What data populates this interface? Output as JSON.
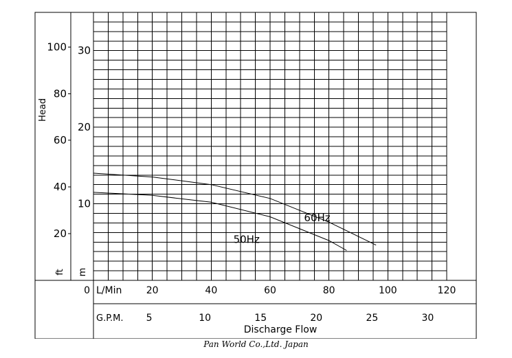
{
  "chart_data": {
    "type": "line",
    "title": "",
    "x_primary": {
      "unit": "L/Min",
      "ticks": [
        20,
        40,
        60,
        80,
        100,
        120
      ],
      "origin_label": "0",
      "range": [
        0,
        120
      ]
    },
    "x_secondary": {
      "unit": "G.P.M.",
      "ticks": [
        5,
        10,
        15,
        20,
        25,
        30
      ]
    },
    "xlabel": "Discharge Flow",
    "y_primary": {
      "label": "Head",
      "unit": "ft",
      "ticks": [
        20,
        40,
        60,
        80,
        100
      ]
    },
    "y_secondary": {
      "unit": "m",
      "ticks": [
        10,
        20,
        30
      ]
    },
    "y_range_m": [
      0,
      35
    ],
    "grid": true,
    "series": [
      {
        "name": "50Hz",
        "x": [
          0,
          20,
          40,
          60,
          80,
          86
        ],
        "y": [
          11.5,
          11.1,
          10.2,
          8.3,
          5.2,
          3.9
        ]
      },
      {
        "name": "60Hz",
        "x": [
          0,
          20,
          40,
          60,
          80,
          96
        ],
        "y": [
          14.0,
          13.5,
          12.5,
          10.7,
          7.6,
          4.6
        ]
      }
    ]
  },
  "footer": "Pan World Co.,Ltd. Japan"
}
